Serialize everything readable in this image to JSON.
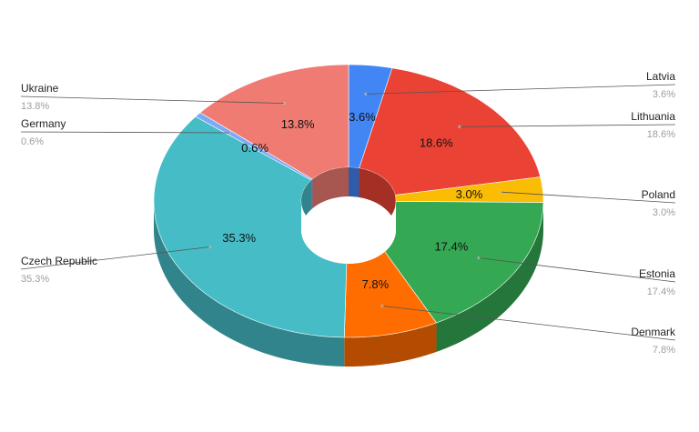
{
  "chart_data": {
    "type": "pie",
    "variant": "3d-donut",
    "legend_placement": "callouts",
    "slices": [
      {
        "label": "Latvia",
        "value": 3.6,
        "display": "3.6%",
        "color": "#4285f4",
        "side_color": "#2e5cab"
      },
      {
        "label": "Lithuania",
        "value": 18.6,
        "display": "18.6%",
        "color": "#ea4335",
        "side_color": "#a42f25"
      },
      {
        "label": "Poland",
        "value": 3.0,
        "display": "3.0%",
        "color": "#fbbc04",
        "side_color": "#b08403"
      },
      {
        "label": "Estonia",
        "value": 17.4,
        "display": "17.4%",
        "color": "#34a853",
        "side_color": "#24763a"
      },
      {
        "label": "Denmark",
        "value": 7.8,
        "display": "7.8%",
        "color": "#ff6d01",
        "side_color": "#b34c01"
      },
      {
        "label": "Czech Republic",
        "value": 35.3,
        "display": "35.3%",
        "color": "#46bdc6",
        "side_color": "#31848b"
      },
      {
        "label": "Germany",
        "value": 0.6,
        "display": "0.6%",
        "color": "#7baaf7",
        "side_color": "#5677ad"
      },
      {
        "label": "Ukraine",
        "value": 13.8,
        "display": "13.8%",
        "color": "#f07b72",
        "side_color": "#a85650"
      }
    ]
  }
}
